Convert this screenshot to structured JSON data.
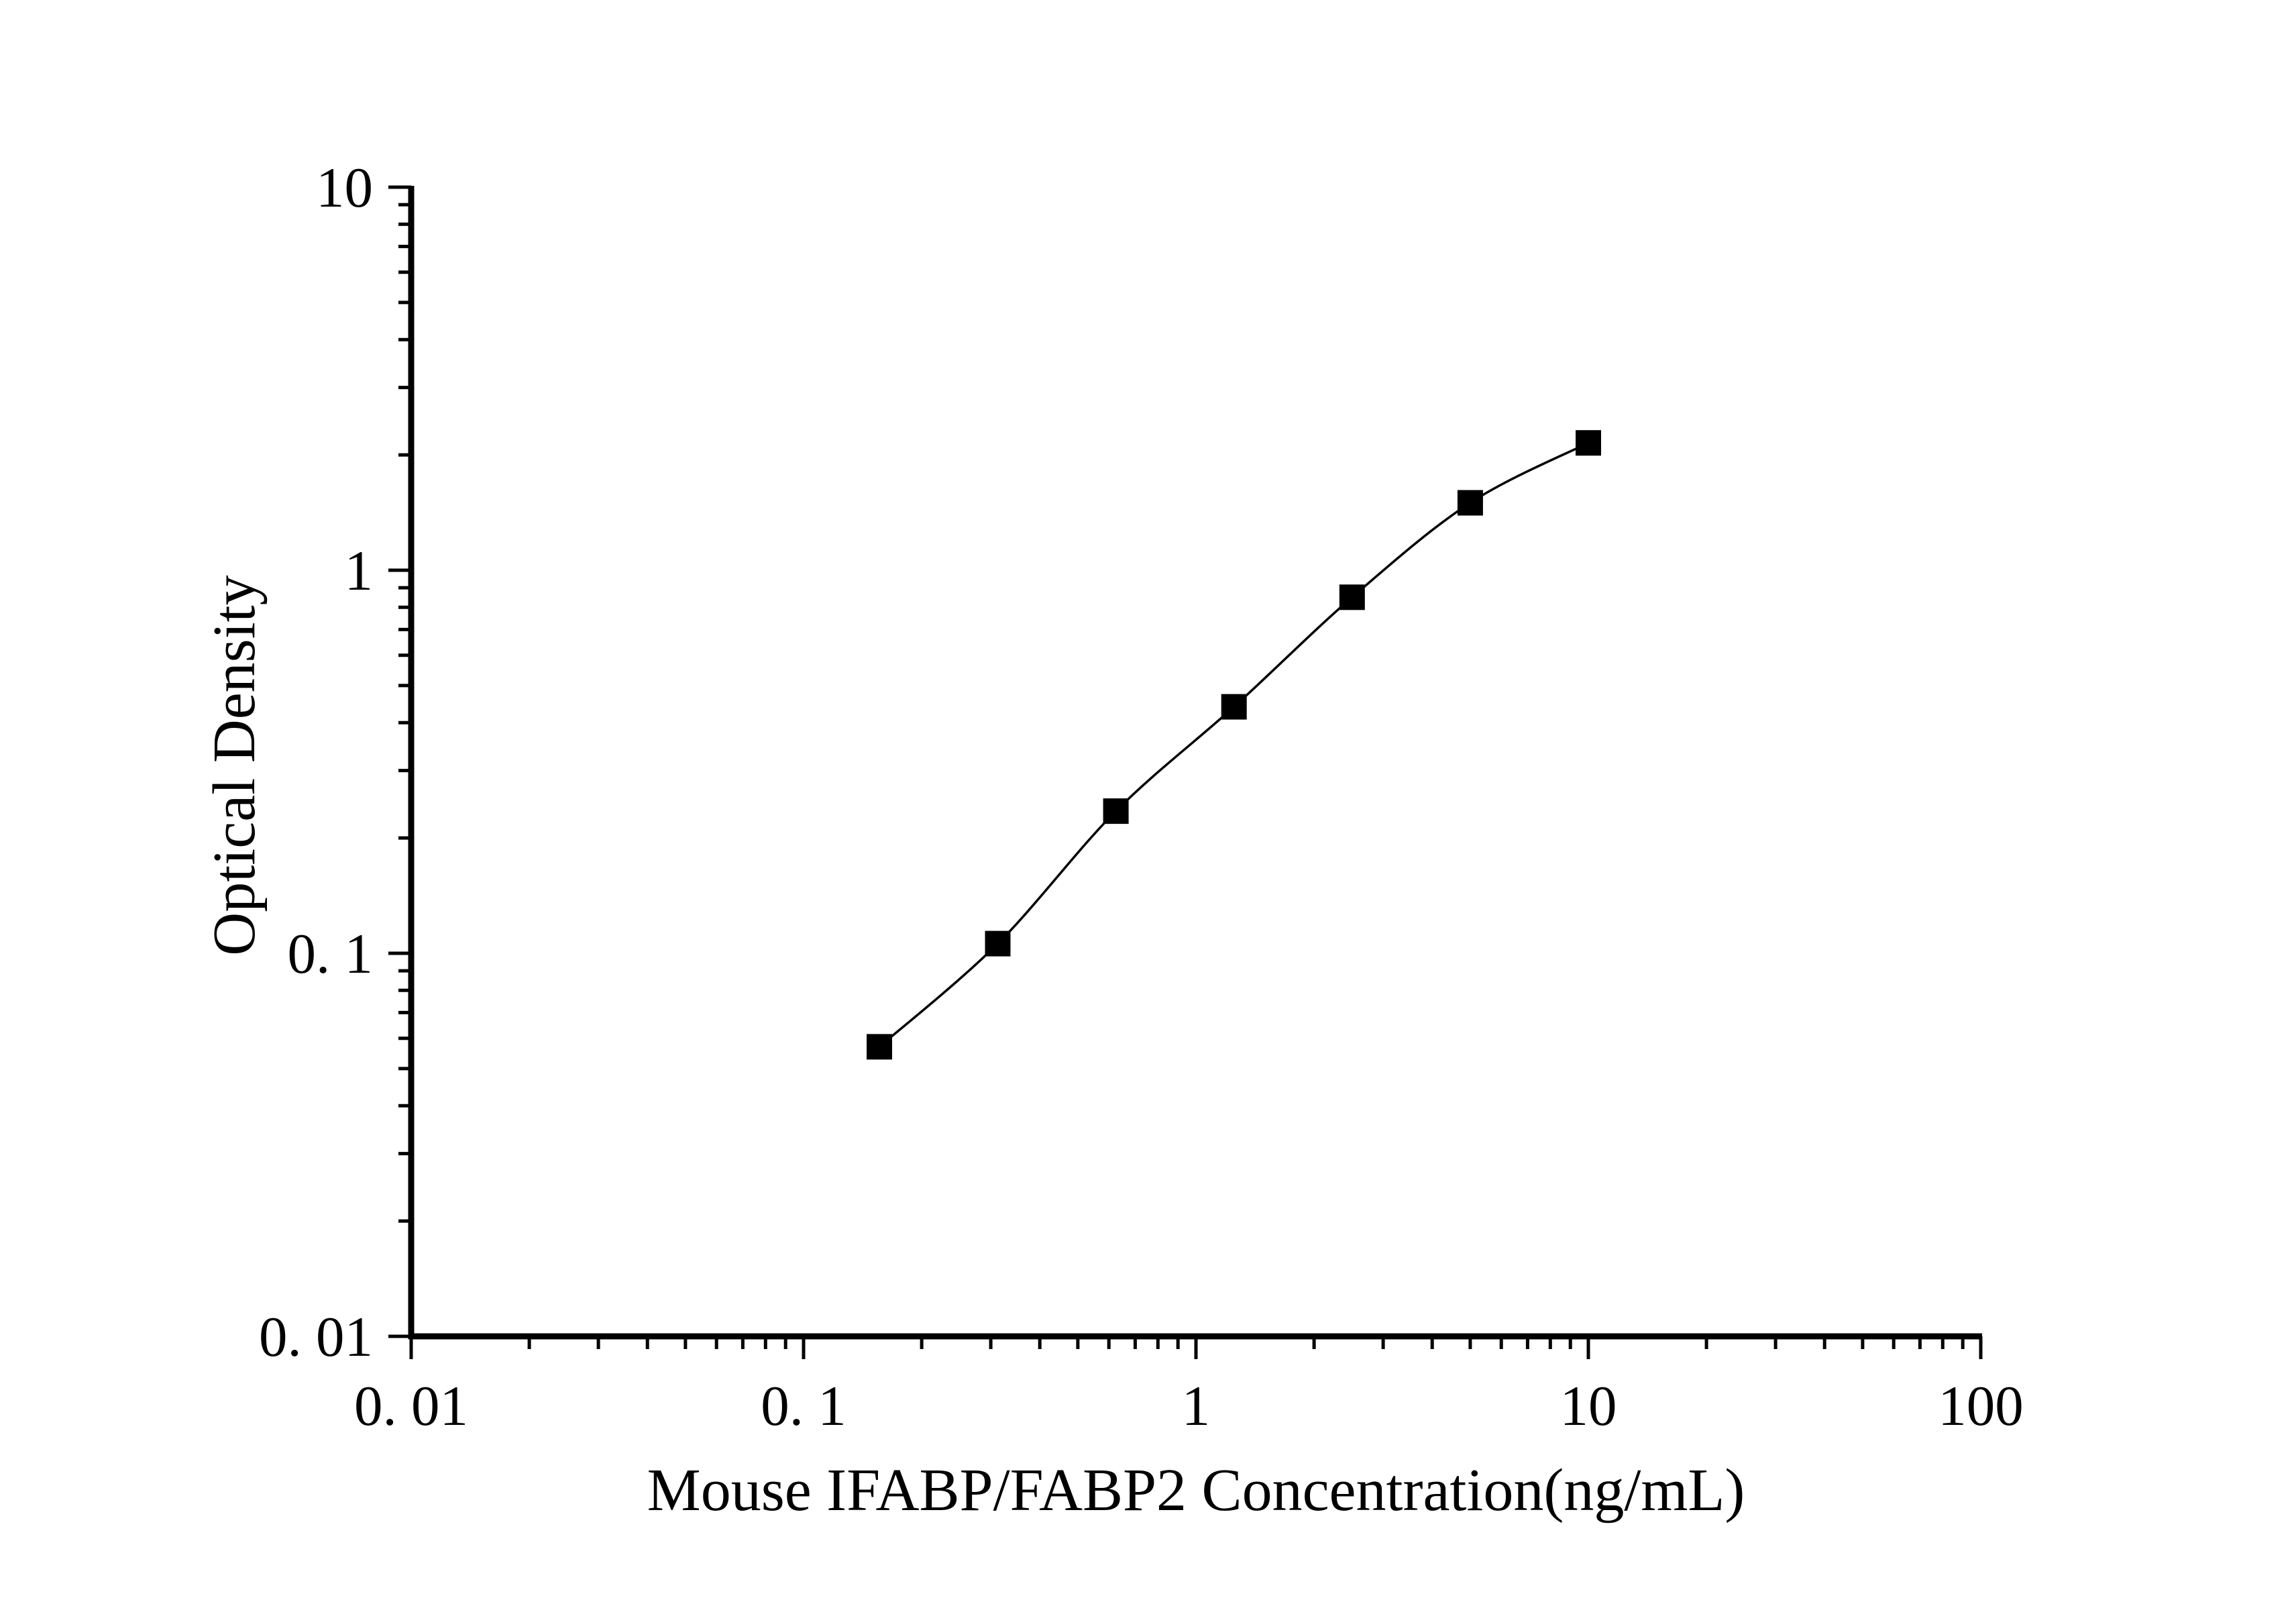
{
  "chart_data": {
    "type": "line",
    "title": "",
    "xlabel": "Mouse IFABP/FABP2 Concentration(ng/mL)",
    "ylabel": "Optical Density",
    "x_scale": "log",
    "y_scale": "log",
    "xlim": [
      0.01,
      100
    ],
    "ylim": [
      0.01,
      10
    ],
    "x": [
      0.156,
      0.3125,
      0.625,
      1.25,
      2.5,
      5,
      10
    ],
    "y": [
      0.057,
      0.106,
      0.235,
      0.44,
      0.85,
      1.5,
      2.15
    ],
    "marker": "filled-square",
    "grid": false,
    "legend": "none",
    "x_ticks": [
      {
        "value": 0.01,
        "label": "0. 01"
      },
      {
        "value": 0.1,
        "label": "0. 1"
      },
      {
        "value": 1,
        "label": "1"
      },
      {
        "value": 10,
        "label": "10"
      },
      {
        "value": 100,
        "label": "100"
      }
    ],
    "y_ticks": [
      {
        "value": 0.01,
        "label": "0. 01"
      },
      {
        "value": 0.1,
        "label": "0. 1"
      },
      {
        "value": 1,
        "label": "1"
      },
      {
        "value": 10,
        "label": "10"
      }
    ],
    "colors": {
      "line": "#000000",
      "marker": "#000000",
      "axis": "#000000",
      "text": "#000000",
      "background": "#ffffff"
    }
  }
}
